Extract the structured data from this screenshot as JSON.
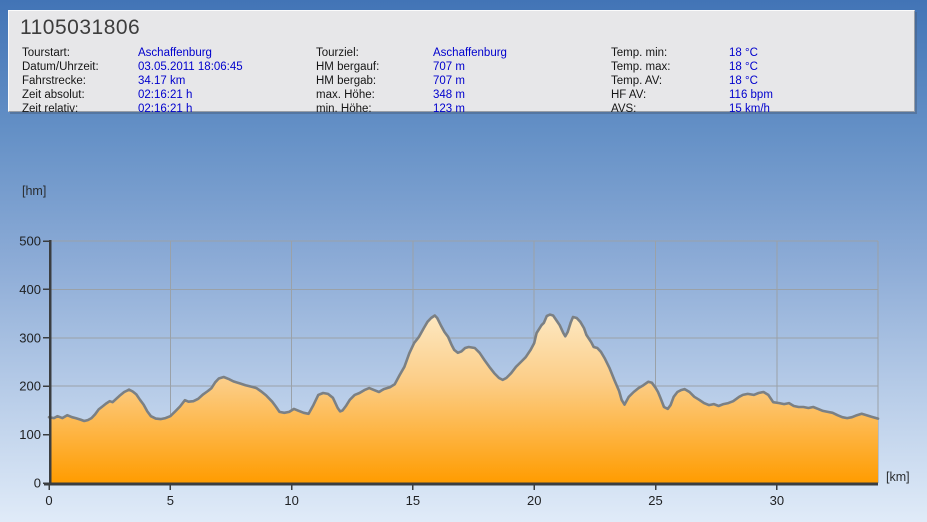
{
  "window": {
    "title": "1105031806"
  },
  "stats": {
    "columns": [
      {
        "rows": [
          {
            "label": "Tourstart:",
            "value": "Aschaffenburg"
          },
          {
            "label": "Datum/Uhrzeit:",
            "value": "03.05.2011 18:06:45"
          },
          {
            "label": "Fahrstrecke:",
            "value": "34.17 km"
          },
          {
            "label": "Zeit absolut:",
            "value": "02:16:21 h"
          },
          {
            "label": "Zeit relativ:",
            "value": "02:16:21 h"
          }
        ]
      },
      {
        "rows": [
          {
            "label": "Tourziel:",
            "value": "Aschaffenburg"
          },
          {
            "label": "HM bergauf:",
            "value": "707 m"
          },
          {
            "label": "HM bergab:",
            "value": "707 m"
          },
          {
            "label": "max. Höhe:",
            "value": "348 m"
          },
          {
            "label": "min. Höhe:",
            "value": "123 m"
          }
        ]
      },
      {
        "rows": [
          {
            "label": "Temp. min:",
            "value": "18 °C"
          },
          {
            "label": "Temp. max:",
            "value": "18 °C"
          },
          {
            "label": "Temp. AV:",
            "value": "18 °C"
          },
          {
            "label": "HF AV:",
            "value": "116 bpm"
          },
          {
            "label": "AVS:",
            "value": "15 km/h"
          }
        ]
      }
    ]
  },
  "chart_data": {
    "type": "area",
    "title": "",
    "xlabel": "[km]",
    "ylabel": "[hm]",
    "xlim": [
      0,
      34.17
    ],
    "ylim": [
      0,
      500
    ],
    "x_ticks": [
      0,
      5,
      10,
      15,
      20,
      25,
      30
    ],
    "y_ticks": [
      0,
      100,
      200,
      300,
      400,
      500
    ],
    "grid": true,
    "legend": false,
    "series": [
      {
        "name": "elevation_profile_hm_vs_km",
        "points": [
          [
            0.0,
            136
          ],
          [
            0.2,
            134
          ],
          [
            0.35,
            138
          ],
          [
            0.55,
            134
          ],
          [
            0.75,
            140
          ],
          [
            0.95,
            136
          ],
          [
            1.1,
            134
          ],
          [
            1.3,
            131
          ],
          [
            1.45,
            128
          ],
          [
            1.6,
            130
          ],
          [
            1.75,
            134
          ],
          [
            1.9,
            142
          ],
          [
            2.05,
            152
          ],
          [
            2.2,
            158
          ],
          [
            2.35,
            164
          ],
          [
            2.5,
            169
          ],
          [
            2.62,
            167
          ],
          [
            2.75,
            173
          ],
          [
            2.9,
            180
          ],
          [
            3.1,
            188
          ],
          [
            3.3,
            193
          ],
          [
            3.45,
            189
          ],
          [
            3.6,
            183
          ],
          [
            3.75,
            172
          ],
          [
            3.9,
            162
          ],
          [
            4.05,
            148
          ],
          [
            4.2,
            138
          ],
          [
            4.4,
            133
          ],
          [
            4.6,
            132
          ],
          [
            4.8,
            134
          ],
          [
            5.0,
            138
          ],
          [
            5.2,
            148
          ],
          [
            5.4,
            158
          ],
          [
            5.6,
            171
          ],
          [
            5.75,
            168
          ],
          [
            5.95,
            169
          ],
          [
            6.15,
            174
          ],
          [
            6.35,
            183
          ],
          [
            6.55,
            190
          ],
          [
            6.7,
            196
          ],
          [
            6.85,
            208
          ],
          [
            7.0,
            216
          ],
          [
            7.2,
            219
          ],
          [
            7.4,
            215
          ],
          [
            7.6,
            210
          ],
          [
            7.85,
            206
          ],
          [
            8.1,
            202
          ],
          [
            8.35,
            199
          ],
          [
            8.55,
            196
          ],
          [
            8.75,
            189
          ],
          [
            8.95,
            181
          ],
          [
            9.2,
            168
          ],
          [
            9.35,
            158
          ],
          [
            9.5,
            147
          ],
          [
            9.7,
            145
          ],
          [
            9.9,
            147
          ],
          [
            10.1,
            153
          ],
          [
            10.3,
            149
          ],
          [
            10.5,
            145
          ],
          [
            10.7,
            143
          ],
          [
            10.9,
            161
          ],
          [
            11.1,
            182
          ],
          [
            11.3,
            186
          ],
          [
            11.5,
            184
          ],
          [
            11.7,
            176
          ],
          [
            11.9,
            155
          ],
          [
            12.0,
            148
          ],
          [
            12.1,
            150
          ],
          [
            12.25,
            160
          ],
          [
            12.4,
            172
          ],
          [
            12.6,
            182
          ],
          [
            12.8,
            186
          ],
          [
            13.0,
            192
          ],
          [
            13.2,
            196
          ],
          [
            13.4,
            192
          ],
          [
            13.6,
            188
          ],
          [
            13.8,
            194
          ],
          [
            14.05,
            198
          ],
          [
            14.25,
            204
          ],
          [
            14.45,
            223
          ],
          [
            14.65,
            240
          ],
          [
            14.85,
            268
          ],
          [
            15.05,
            289
          ],
          [
            15.25,
            302
          ],
          [
            15.45,
            320
          ],
          [
            15.6,
            333
          ],
          [
            15.75,
            341
          ],
          [
            15.9,
            346
          ],
          [
            16.0,
            341
          ],
          [
            16.15,
            326
          ],
          [
            16.3,
            312
          ],
          [
            16.45,
            302
          ],
          [
            16.6,
            285
          ],
          [
            16.7,
            275
          ],
          [
            16.85,
            269
          ],
          [
            17.0,
            272
          ],
          [
            17.15,
            279
          ],
          [
            17.3,
            281
          ],
          [
            17.55,
            279
          ],
          [
            17.75,
            269
          ],
          [
            17.95,
            254
          ],
          [
            18.15,
            240
          ],
          [
            18.35,
            227
          ],
          [
            18.55,
            217
          ],
          [
            18.7,
            213
          ],
          [
            18.85,
            217
          ],
          [
            19.05,
            227
          ],
          [
            19.25,
            240
          ],
          [
            19.45,
            250
          ],
          [
            19.65,
            260
          ],
          [
            19.85,
            275
          ],
          [
            20.0,
            289
          ],
          [
            20.1,
            310
          ],
          [
            20.3,
            326
          ],
          [
            20.4,
            331
          ],
          [
            20.52,
            345
          ],
          [
            20.65,
            348
          ],
          [
            20.78,
            346
          ],
          [
            20.9,
            337
          ],
          [
            21.05,
            326
          ],
          [
            21.2,
            310
          ],
          [
            21.28,
            303
          ],
          [
            21.38,
            312
          ],
          [
            21.5,
            331
          ],
          [
            21.6,
            343
          ],
          [
            21.75,
            341
          ],
          [
            21.9,
            333
          ],
          [
            22.05,
            320
          ],
          [
            22.15,
            306
          ],
          [
            22.35,
            291
          ],
          [
            22.45,
            281
          ],
          [
            22.6,
            279
          ],
          [
            22.75,
            271
          ],
          [
            22.9,
            258
          ],
          [
            23.1,
            238
          ],
          [
            23.3,
            213
          ],
          [
            23.5,
            190
          ],
          [
            23.6,
            172
          ],
          [
            23.72,
            162
          ],
          [
            23.9,
            178
          ],
          [
            24.1,
            188
          ],
          [
            24.3,
            196
          ],
          [
            24.5,
            202
          ],
          [
            24.7,
            209
          ],
          [
            24.85,
            207
          ],
          [
            25.0,
            197
          ],
          [
            25.1,
            188
          ],
          [
            25.2,
            176
          ],
          [
            25.35,
            157
          ],
          [
            25.5,
            153
          ],
          [
            25.62,
            161
          ],
          [
            25.75,
            178
          ],
          [
            25.9,
            188
          ],
          [
            26.05,
            192
          ],
          [
            26.2,
            194
          ],
          [
            26.4,
            188
          ],
          [
            26.6,
            178
          ],
          [
            26.8,
            172
          ],
          [
            27.0,
            165
          ],
          [
            27.2,
            161
          ],
          [
            27.4,
            163
          ],
          [
            27.6,
            159
          ],
          [
            27.8,
            163
          ],
          [
            28.0,
            165
          ],
          [
            28.2,
            169
          ],
          [
            28.45,
            178
          ],
          [
            28.6,
            182
          ],
          [
            28.8,
            184
          ],
          [
            29.05,
            182
          ],
          [
            29.25,
            186
          ],
          [
            29.45,
            188
          ],
          [
            29.65,
            182
          ],
          [
            29.85,
            167
          ],
          [
            30.1,
            165
          ],
          [
            30.3,
            163
          ],
          [
            30.5,
            165
          ],
          [
            30.7,
            159
          ],
          [
            30.9,
            157
          ],
          [
            31.1,
            157
          ],
          [
            31.3,
            155
          ],
          [
            31.5,
            157
          ],
          [
            31.7,
            153
          ],
          [
            31.9,
            149
          ],
          [
            32.1,
            147
          ],
          [
            32.3,
            145
          ],
          [
            32.5,
            140
          ],
          [
            32.7,
            136
          ],
          [
            32.9,
            134
          ],
          [
            33.1,
            136
          ],
          [
            33.3,
            140
          ],
          [
            33.5,
            143
          ],
          [
            33.7,
            140
          ],
          [
            33.9,
            137
          ],
          [
            34.17,
            133
          ]
        ]
      }
    ]
  },
  "colors": {
    "background_top": "#4274b6",
    "background_bottom": "#e0ebf8",
    "panel_bg": "#e7e7e9",
    "label_text": "#161616",
    "value_text": "#0000cd",
    "title_text": "#3d3d3d",
    "gridline": "#9aa1a8",
    "axis": "#3a3d40",
    "profile_line": "#7b8084",
    "area_fill_top": "#fdeecf",
    "area_fill_mid": "#fccd86",
    "area_fill_bottom": "#ff9c00"
  }
}
